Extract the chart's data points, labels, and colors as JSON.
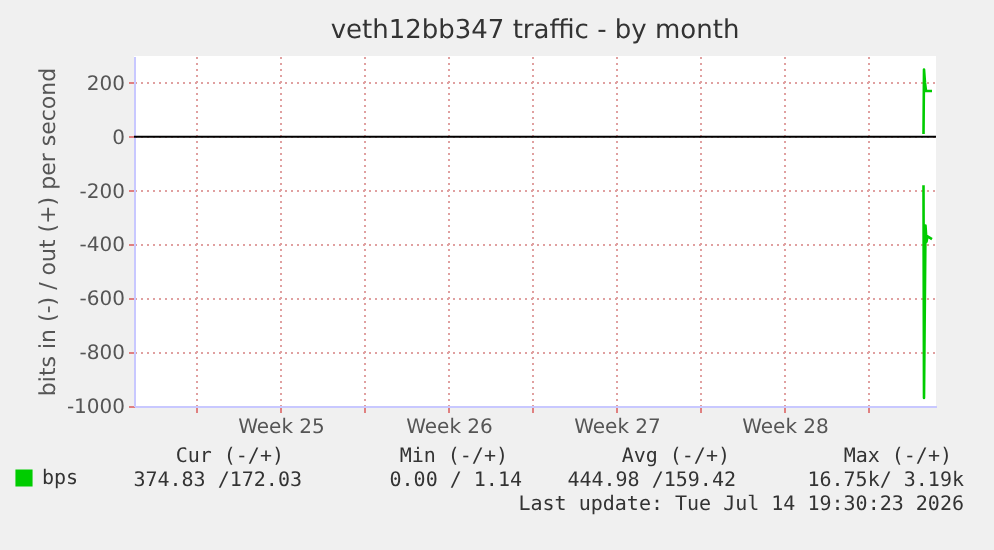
{
  "chart_data": {
    "type": "line",
    "title": "veth12bb347 traffic - by month",
    "ylabel": "bits in (-) / out (+) per second",
    "xlim": [
      "2026-06-11T09:30",
      "2026-07-14T19:30"
    ],
    "xticks": [
      {
        "value": "2026-06-14T00:00",
        "label": null
      },
      {
        "value": "2026-06-17T12:00",
        "label": "Week 25"
      },
      {
        "value": "2026-06-21T00:00",
        "label": null
      },
      {
        "value": "2026-06-24T12:00",
        "label": "Week 26"
      },
      {
        "value": "2026-06-28T00:00",
        "label": null
      },
      {
        "value": "2026-07-01T12:00",
        "label": "Week 27"
      },
      {
        "value": "2026-07-05T00:00",
        "label": null
      },
      {
        "value": "2026-07-08T12:00",
        "label": "Week 28"
      },
      {
        "value": "2026-07-12T00:00",
        "label": null
      }
    ],
    "ylim": [
      -1000,
      300
    ],
    "yticks": [
      -1000,
      -800,
      -600,
      -400,
      -200,
      0,
      200
    ],
    "grid": true,
    "legend": "bottom left",
    "line_style": "solid",
    "marker": "none",
    "series": [
      {
        "name": "bps",
        "color": "#00cc00",
        "x": [
          "2026-07-14T07:00",
          "2026-07-14T07:30",
          "2026-07-14T08:30",
          "2026-07-14T09:30",
          "2026-07-14T15:30"
        ],
        "values": [
          10,
          250,
          200,
          170,
          170
        ]
      },
      {
        "color": "#00cc00",
        "x": [
          "2026-07-14T07:00",
          "2026-07-14T07:30",
          "2026-07-14T09:00",
          "2026-07-14T10:00",
          "2026-07-14T11:00",
          "2026-07-14T15:30"
        ],
        "values": [
          -180,
          -970,
          -330,
          -390,
          -370,
          -380
        ]
      }
    ],
    "ref_lines": [
      {
        "axis": "y",
        "value": 0,
        "color": "#000000"
      }
    ],
    "annotations": [
      "Cur (-/+)",
      "Min (-/+)",
      "Avg (-/+)",
      "Max (-/+)",
      "374.83 /172.03",
      "0.00 /   1.14",
      "444.98 /159.42",
      "16.75k/  3.19k",
      "Last update: Tue Jul 14 19:30:23 2026"
    ]
  }
}
